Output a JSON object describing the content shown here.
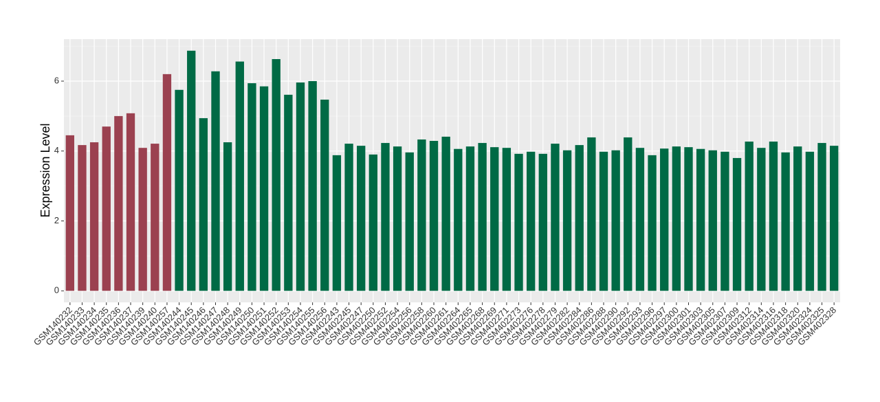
{
  "chart_data": {
    "type": "bar",
    "y_label": "Expression Level",
    "categories": [
      "GSM140232",
      "GSM140233",
      "GSM140234",
      "GSM140235",
      "GSM140236",
      "GSM140237",
      "GSM140239",
      "GSM140240",
      "GSM140257",
      "GSM140244",
      "GSM140245",
      "GSM140246",
      "GSM140247",
      "GSM140248",
      "GSM140249",
      "GSM140250",
      "GSM140251",
      "GSM140252",
      "GSM140253",
      "GSM140254",
      "GSM140255",
      "GSM140256",
      "GSM402243",
      "GSM402245",
      "GSM402247",
      "GSM402250",
      "GSM402252",
      "GSM402254",
      "GSM402256",
      "GSM402258",
      "GSM402260",
      "GSM402261",
      "GSM402264",
      "GSM402265",
      "GSM402268",
      "GSM402269",
      "GSM402271",
      "GSM402273",
      "GSM402276",
      "GSM402278",
      "GSM402279",
      "GSM402282",
      "GSM402284",
      "GSM402286",
      "GSM402288",
      "GSM402290",
      "GSM402292",
      "GSM402293",
      "GSM402296",
      "GSM402297",
      "GSM402300",
      "GSM402301",
      "GSM402303",
      "GSM402305",
      "GSM402307",
      "GSM402309",
      "GSM402312",
      "GSM402314",
      "GSM402316",
      "GSM402318",
      "GSM402320",
      "GSM402324",
      "GSM402325",
      "GSM402328"
    ],
    "values": [
      4.45,
      4.17,
      4.25,
      4.7,
      5.0,
      5.08,
      4.09,
      4.21,
      6.2,
      5.75,
      6.87,
      4.94,
      6.28,
      4.25,
      6.56,
      5.94,
      5.85,
      6.63,
      5.61,
      5.96,
      6.0,
      5.47,
      3.88,
      4.21,
      4.15,
      3.9,
      4.23,
      4.13,
      3.96,
      4.33,
      4.29,
      4.41,
      4.06,
      4.13,
      4.23,
      4.11,
      4.09,
      3.92,
      3.98,
      3.92,
      4.21,
      4.02,
      4.17,
      4.39,
      3.98,
      4.02,
      4.39,
      4.09,
      3.88,
      4.07,
      4.13,
      4.11,
      4.06,
      4.02,
      3.98,
      3.8,
      4.27,
      4.09,
      4.27,
      3.96,
      4.13,
      3.98,
      4.23,
      4.15
    ],
    "bar_colors": [
      "#9b4150",
      "#9b4150",
      "#9b4150",
      "#9b4150",
      "#9b4150",
      "#9b4150",
      "#9b4150",
      "#9b4150",
      "#9b4150",
      "#006a45",
      "#006a45",
      "#006a45",
      "#006a45",
      "#006a45",
      "#006a45",
      "#006a45",
      "#006a45",
      "#006a45",
      "#006a45",
      "#006a45",
      "#006a45",
      "#006a45",
      "#006a45",
      "#006a45",
      "#006a45",
      "#006a45",
      "#006a45",
      "#006a45",
      "#006a45",
      "#006a45",
      "#006a45",
      "#006a45",
      "#006a45",
      "#006a45",
      "#006a45",
      "#006a45",
      "#006a45",
      "#006a45",
      "#006a45",
      "#006a45",
      "#006a45",
      "#006a45",
      "#006a45",
      "#006a45",
      "#006a45",
      "#006a45",
      "#006a45",
      "#006a45",
      "#006a45",
      "#006a45",
      "#006a45",
      "#006a45",
      "#006a45",
      "#006a45",
      "#006a45",
      "#006a45",
      "#006a45",
      "#006a45",
      "#006a45",
      "#006a45",
      "#006a45",
      "#006a45",
      "#006a45",
      "#006a45"
    ],
    "ylim": [
      -0.33,
      7.2
    ],
    "yticks": [
      0,
      2,
      4,
      6
    ],
    "minor_yticks": [
      1,
      3,
      5,
      7
    ],
    "grid": true
  }
}
